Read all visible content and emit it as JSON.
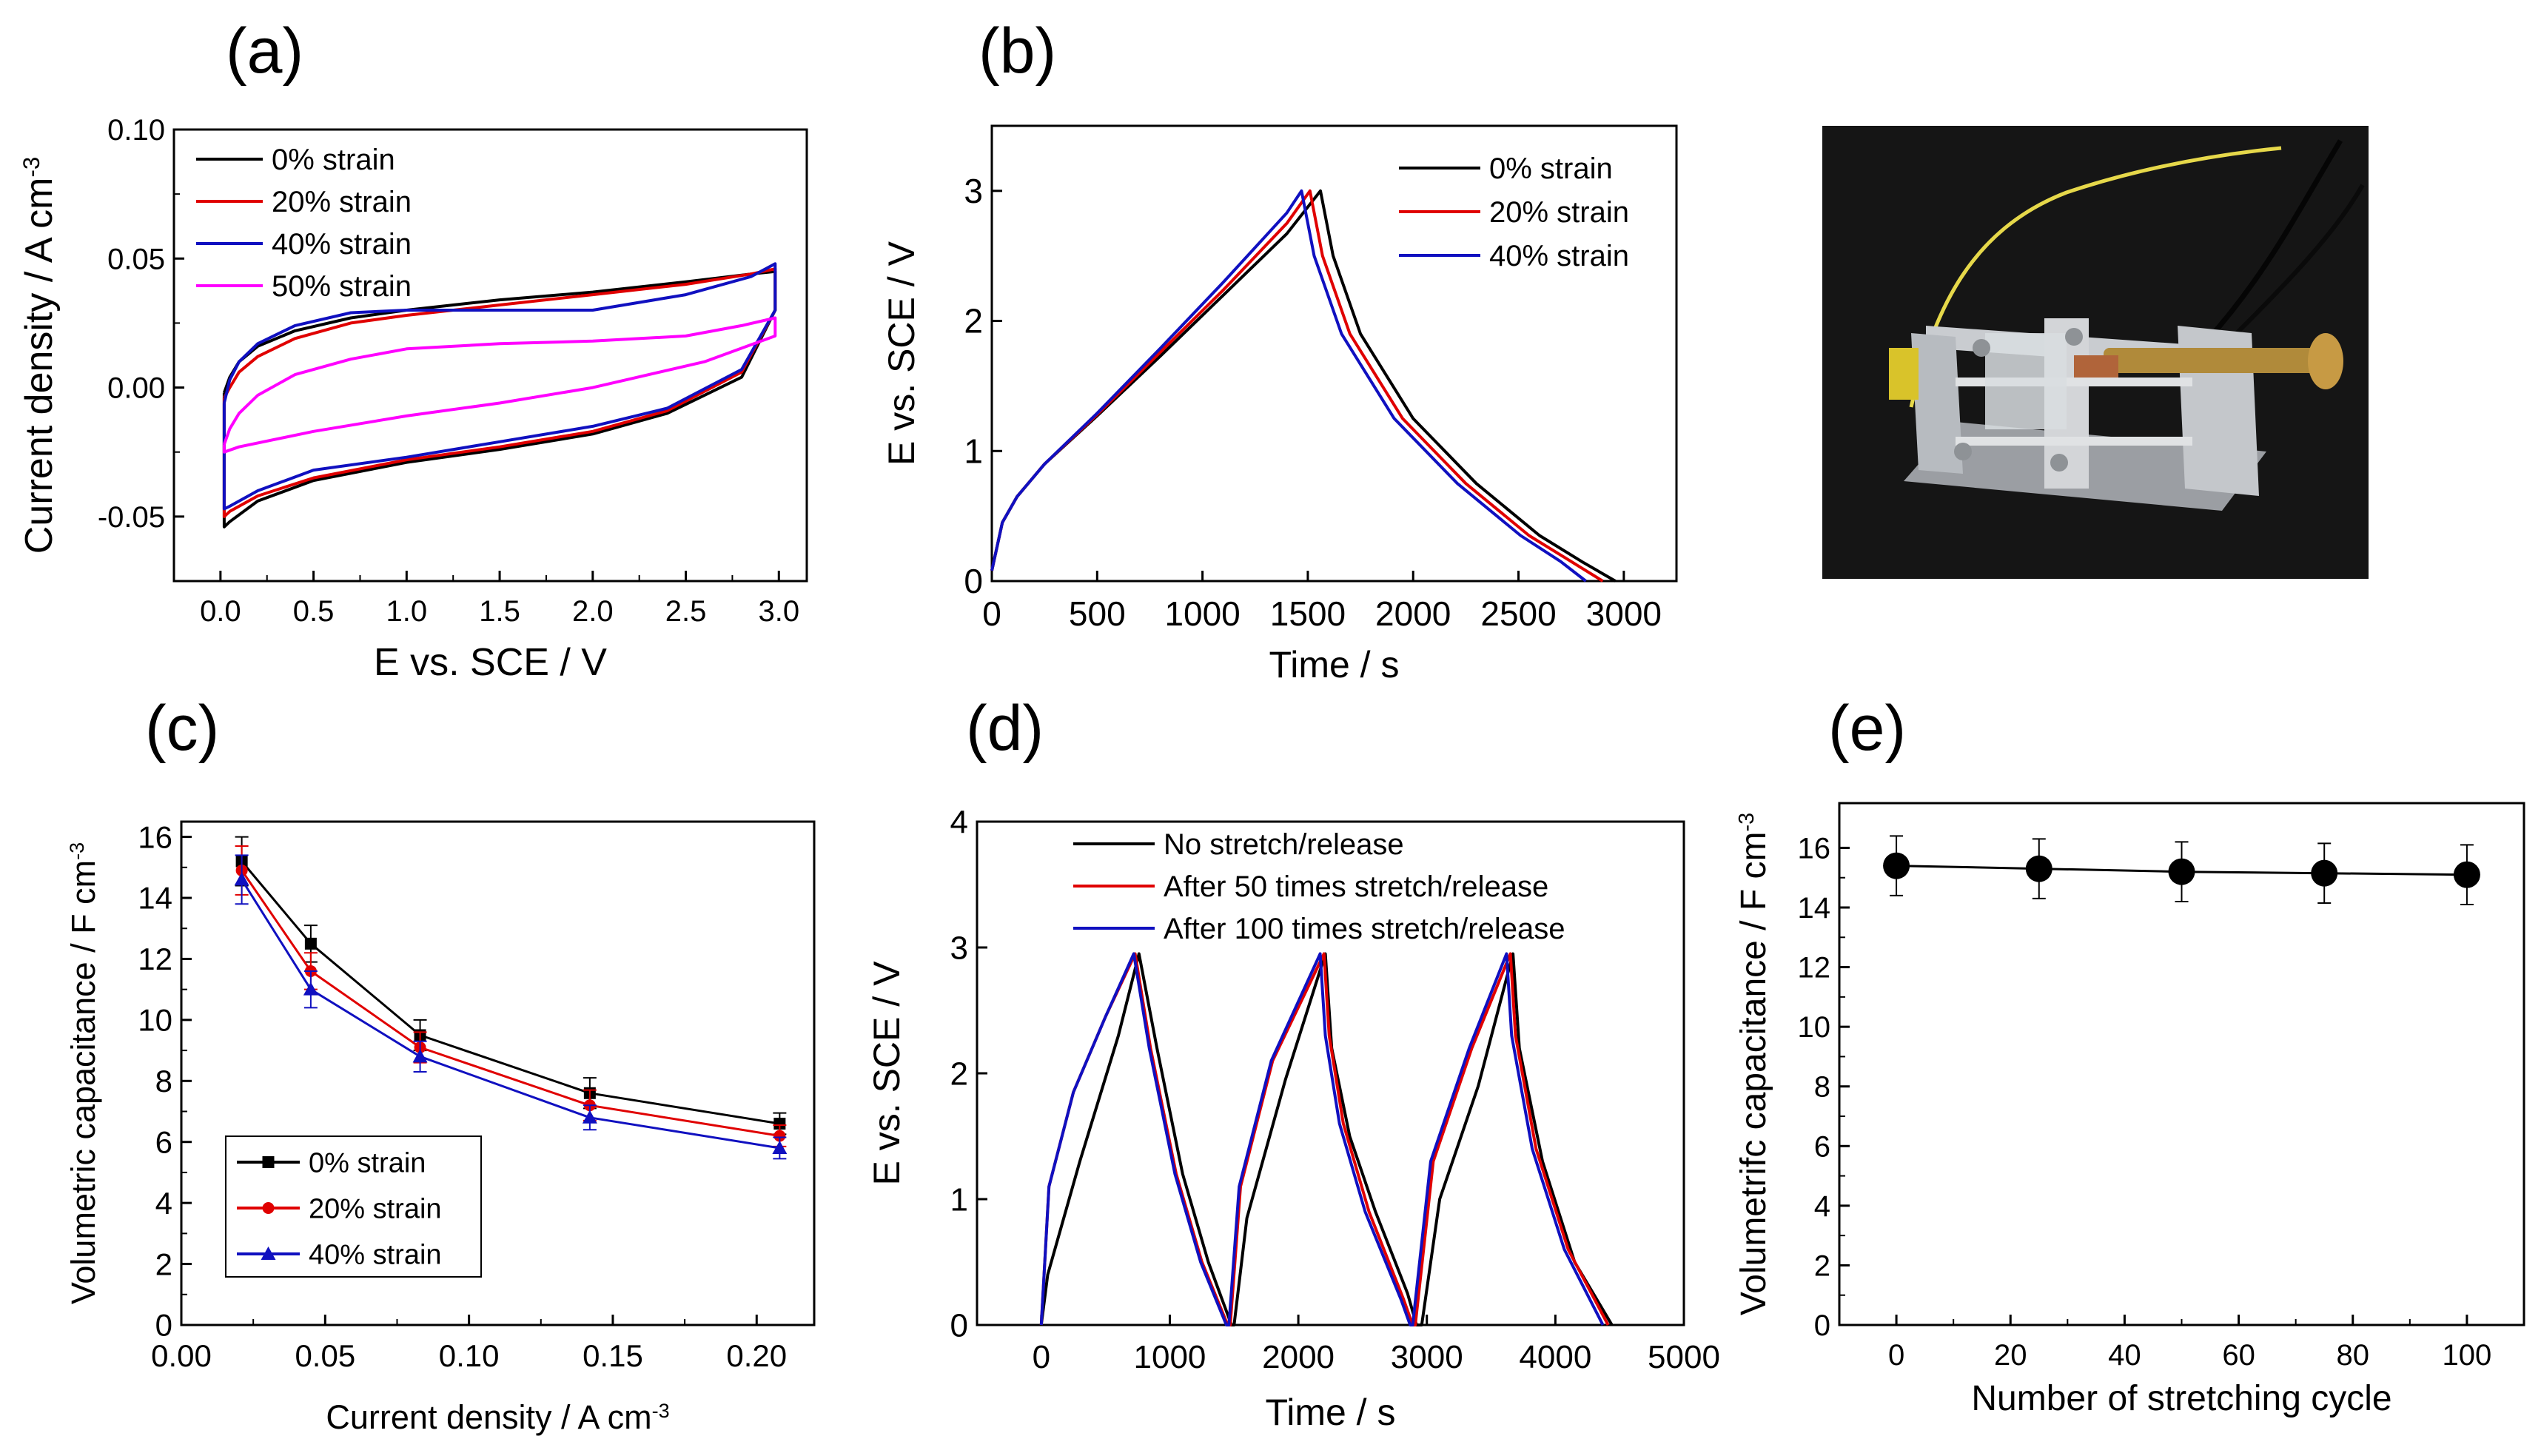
{
  "colors": {
    "black": "#000000",
    "red": "#e00000",
    "blue": "#1010c0",
    "magenta": "#ff00ff"
  },
  "panel_labels": {
    "a": "(a)",
    "b": "(b)",
    "c": "(c)",
    "d": "(d)",
    "e": "(e)"
  },
  "chart_data": [
    {
      "id": "a",
      "type": "line",
      "xlabel": "E vs. SCE / V",
      "ylabel": "Current density / A cm",
      "ylabel_sup": "-3",
      "xlim": [
        -0.25,
        3.15
      ],
      "ylim": [
        -0.075,
        0.1
      ],
      "xticks": [
        0.0,
        0.5,
        1.0,
        1.5,
        2.0,
        2.5,
        3.0
      ],
      "xtick_labels": [
        "0.0",
        "0.5",
        "1.0",
        "1.5",
        "2.0",
        "2.5",
        "3.0"
      ],
      "yticks": [
        -0.05,
        0.0,
        0.05,
        0.1
      ],
      "ytick_labels": [
        "-0.05",
        "0.00",
        "0.05",
        "0.10"
      ],
      "legend": [
        "0% strain",
        "20% strain",
        "40% strain",
        "50% strain"
      ],
      "series": [
        {
          "name": "0% strain",
          "color": "#000000",
          "x": [
            0.02,
            0.05,
            0.1,
            0.2,
            0.4,
            0.7,
            1.0,
            1.5,
            2.0,
            2.5,
            2.85,
            2.98,
            2.98,
            2.8,
            2.4,
            2.0,
            1.5,
            1.0,
            0.5,
            0.2,
            0.05,
            0.02,
            0.02
          ],
          "y": [
            -0.002,
            0.004,
            0.01,
            0.016,
            0.022,
            0.027,
            0.03,
            0.034,
            0.037,
            0.041,
            0.044,
            0.045,
            0.03,
            0.004,
            -0.01,
            -0.018,
            -0.024,
            -0.029,
            -0.036,
            -0.044,
            -0.052,
            -0.054,
            -0.002
          ]
        },
        {
          "name": "20% strain",
          "color": "#e00000",
          "x": [
            0.02,
            0.05,
            0.1,
            0.2,
            0.4,
            0.7,
            1.0,
            1.5,
            2.0,
            2.5,
            2.85,
            2.98,
            2.98,
            2.8,
            2.4,
            2.0,
            1.5,
            1.0,
            0.5,
            0.2,
            0.05,
            0.02,
            0.02
          ],
          "y": [
            -0.004,
            0.0,
            0.006,
            0.012,
            0.019,
            0.025,
            0.028,
            0.032,
            0.036,
            0.04,
            0.044,
            0.046,
            0.03,
            0.006,
            -0.009,
            -0.017,
            -0.023,
            -0.028,
            -0.035,
            -0.042,
            -0.048,
            -0.05,
            -0.004
          ]
        },
        {
          "name": "40% strain",
          "color": "#1010c0",
          "x": [
            0.02,
            0.05,
            0.1,
            0.2,
            0.4,
            0.7,
            1.0,
            1.3,
            1.6,
            2.0,
            2.5,
            2.85,
            2.98,
            2.98,
            2.8,
            2.4,
            2.0,
            1.5,
            1.0,
            0.5,
            0.35,
            0.2,
            0.05,
            0.02,
            0.02
          ],
          "y": [
            -0.006,
            0.003,
            0.01,
            0.017,
            0.024,
            0.029,
            0.03,
            0.03,
            0.03,
            0.03,
            0.036,
            0.043,
            0.048,
            0.03,
            0.007,
            -0.008,
            -0.015,
            -0.021,
            -0.027,
            -0.032,
            -0.036,
            -0.04,
            -0.046,
            -0.047,
            -0.006
          ]
        },
        {
          "name": "50% strain",
          "color": "#ff00ff",
          "x": [
            0.02,
            0.05,
            0.1,
            0.2,
            0.4,
            0.7,
            1.0,
            1.5,
            2.0,
            2.5,
            2.8,
            2.98,
            2.98,
            2.6,
            2.0,
            1.5,
            1.0,
            0.5,
            0.1,
            0.02,
            0.02
          ],
          "y": [
            -0.022,
            -0.016,
            -0.01,
            -0.003,
            0.005,
            0.011,
            0.015,
            0.017,
            0.018,
            0.02,
            0.024,
            0.027,
            0.02,
            0.01,
            0.0,
            -0.006,
            -0.011,
            -0.017,
            -0.023,
            -0.025,
            -0.022
          ]
        }
      ]
    },
    {
      "id": "b",
      "type": "line",
      "xlabel": "Time / s",
      "ylabel": "E vs. SCE / V",
      "xlim": [
        0,
        3250
      ],
      "ylim": [
        0,
        3.5
      ],
      "xticks": [
        0,
        500,
        1000,
        1500,
        2000,
        2500,
        3000
      ],
      "xtick_labels": [
        "0",
        "500",
        "1000",
        "1500",
        "2000",
        "2500",
        "3000"
      ],
      "yticks": [
        0,
        1,
        2,
        3
      ],
      "ytick_labels": [
        "0",
        "1",
        "2",
        "3"
      ],
      "legend": [
        "0% strain",
        "20% strain",
        "40% strain"
      ],
      "series": [
        {
          "name": "0% strain",
          "color": "#000000",
          "x": [
            0,
            50,
            120,
            250,
            500,
            800,
            1100,
            1400,
            1560,
            1620,
            1750,
            2000,
            2300,
            2600,
            2800,
            2960
          ],
          "y": [
            0.08,
            0.45,
            0.65,
            0.9,
            1.27,
            1.73,
            2.2,
            2.67,
            3.0,
            2.5,
            1.9,
            1.25,
            0.75,
            0.35,
            0.15,
            0.0
          ]
        },
        {
          "name": "20% strain",
          "color": "#e00000",
          "x": [
            0,
            50,
            120,
            250,
            500,
            800,
            1100,
            1400,
            1510,
            1570,
            1700,
            1950,
            2250,
            2550,
            2750,
            2900
          ],
          "y": [
            0.08,
            0.45,
            0.65,
            0.9,
            1.28,
            1.76,
            2.24,
            2.75,
            3.0,
            2.5,
            1.9,
            1.25,
            0.75,
            0.35,
            0.15,
            0.0
          ]
        },
        {
          "name": "40% strain",
          "color": "#1010c0",
          "x": [
            0,
            50,
            120,
            250,
            500,
            800,
            1100,
            1400,
            1470,
            1530,
            1660,
            1910,
            2210,
            2510,
            2700,
            2820
          ],
          "y": [
            0.08,
            0.45,
            0.65,
            0.9,
            1.29,
            1.79,
            2.3,
            2.83,
            3.0,
            2.5,
            1.9,
            1.25,
            0.75,
            0.35,
            0.15,
            0.0
          ]
        }
      ]
    },
    {
      "id": "c",
      "type": "line",
      "xlabel": "Current density / A cm",
      "xlabel_sup": "-3",
      "ylabel": "Volumetric capacitance / F cm",
      "ylabel_sup": "-3",
      "xlim": [
        0.0,
        0.22
      ],
      "ylim": [
        0,
        16.5
      ],
      "xticks": [
        0.0,
        0.05,
        0.1,
        0.15,
        0.2
      ],
      "xtick_labels": [
        "0.00",
        "0.05",
        "0.10",
        "0.15",
        "0.20"
      ],
      "yticks": [
        0,
        2,
        4,
        6,
        8,
        10,
        12,
        14,
        16
      ],
      "ytick_labels": [
        "0",
        "2",
        "4",
        "6",
        "8",
        "10",
        "12",
        "14",
        "16"
      ],
      "legend": [
        "0% strain",
        "20% strain",
        "40% strain"
      ],
      "x": [
        0.021,
        0.045,
        0.083,
        0.142,
        0.208
      ],
      "series": [
        {
          "name": "0% strain",
          "color": "#000000",
          "marker": "square",
          "values": [
            15.2,
            12.5,
            9.5,
            7.6,
            6.6
          ],
          "err": [
            0.8,
            0.6,
            0.5,
            0.5,
            0.35
          ]
        },
        {
          "name": "20% strain",
          "color": "#e00000",
          "marker": "circle",
          "values": [
            14.9,
            11.6,
            9.1,
            7.2,
            6.2
          ],
          "err": [
            0.8,
            0.6,
            0.5,
            0.5,
            0.35
          ]
        },
        {
          "name": "40% strain",
          "color": "#1010c0",
          "marker": "triangle",
          "values": [
            14.6,
            11.0,
            8.8,
            6.8,
            5.8
          ],
          "err": [
            0.8,
            0.6,
            0.5,
            0.4,
            0.35
          ]
        }
      ]
    },
    {
      "id": "d",
      "type": "line",
      "xlabel": "Time / s",
      "ylabel": "E vs. SCE / V",
      "xlim": [
        -500,
        5000
      ],
      "ylim": [
        0,
        4
      ],
      "xticks": [
        0,
        1000,
        2000,
        3000,
        4000,
        5000
      ],
      "xtick_labels": [
        "0",
        "1000",
        "2000",
        "3000",
        "4000",
        "5000"
      ],
      "yticks": [
        0,
        1,
        2,
        3,
        4
      ],
      "ytick_labels": [
        "0",
        "1",
        "2",
        "3",
        "4"
      ],
      "legend": [
        "No stretch/release",
        "After 50 times stretch/release",
        "After 100 times stretch/release"
      ],
      "series": [
        {
          "name": "No stretch/release",
          "color": "#000000",
          "x": [
            0,
            50,
            300,
            600,
            760,
            900,
            1100,
            1300,
            1480,
            1500,
            1600,
            1900,
            2210,
            2260,
            2400,
            2600,
            2850,
            2920,
            2960,
            3100,
            3400,
            3670,
            3720,
            3900,
            4150,
            4440
          ],
          "y": [
            0.0,
            0.4,
            1.3,
            2.3,
            2.95,
            2.2,
            1.2,
            0.5,
            0.0,
            0.0,
            0.85,
            1.95,
            2.95,
            2.2,
            1.5,
            0.9,
            0.25,
            0.0,
            0.0,
            1.0,
            1.9,
            2.95,
            2.2,
            1.3,
            0.5,
            0.0
          ]
        },
        {
          "name": "After 50 times stretch/release",
          "color": "#e00000",
          "x": [
            0,
            60,
            250,
            500,
            730,
            850,
            1050,
            1250,
            1450,
            1470,
            1550,
            1800,
            2200,
            2240,
            2350,
            2550,
            2820,
            2890,
            2910,
            3050,
            3350,
            3650,
            3690,
            3850,
            4100,
            4410
          ],
          "y": [
            0.0,
            1.1,
            1.85,
            2.45,
            2.95,
            2.2,
            1.2,
            0.5,
            0.0,
            0.0,
            1.1,
            2.1,
            2.95,
            2.3,
            1.6,
            0.9,
            0.2,
            0.0,
            0.0,
            1.3,
            2.2,
            2.95,
            2.3,
            1.4,
            0.6,
            0.0
          ]
        },
        {
          "name": "After 100 times stretch/release",
          "color": "#1010c0",
          "x": [
            0,
            60,
            250,
            500,
            720,
            840,
            1040,
            1240,
            1440,
            1460,
            1540,
            1790,
            2170,
            2210,
            2320,
            2520,
            2800,
            2870,
            2890,
            3030,
            3330,
            3620,
            3660,
            3820,
            4070,
            4370
          ],
          "y": [
            0.0,
            1.1,
            1.85,
            2.45,
            2.95,
            2.2,
            1.2,
            0.5,
            0.0,
            0.0,
            1.1,
            2.1,
            2.95,
            2.3,
            1.6,
            0.9,
            0.2,
            0.0,
            0.0,
            1.3,
            2.2,
            2.95,
            2.3,
            1.4,
            0.6,
            0.0
          ]
        }
      ]
    },
    {
      "id": "e",
      "type": "scatter",
      "xlabel": "Number of stretching cycle",
      "ylabel": "Volumetrifc capacitance / F cm",
      "ylabel_sup": "-3",
      "xlim": [
        -10,
        110
      ],
      "ylim": [
        0,
        17.5
      ],
      "xticks": [
        0,
        20,
        40,
        60,
        80,
        100
      ],
      "xtick_labels": [
        "0",
        "20",
        "40",
        "60",
        "80",
        "100"
      ],
      "yticks": [
        0,
        2,
        4,
        6,
        8,
        10,
        12,
        14,
        16
      ],
      "ytick_labels": [
        "0",
        "2",
        "4",
        "6",
        "8",
        "10",
        "12",
        "14",
        "16"
      ],
      "series": [
        {
          "name": "capacitance",
          "color": "#000000",
          "x": [
            0,
            25,
            50,
            75,
            100
          ],
          "values": [
            15.4,
            15.3,
            15.2,
            15.15,
            15.1
          ],
          "err": [
            1.0,
            1.0,
            1.0,
            1.0,
            1.0
          ]
        }
      ]
    }
  ]
}
